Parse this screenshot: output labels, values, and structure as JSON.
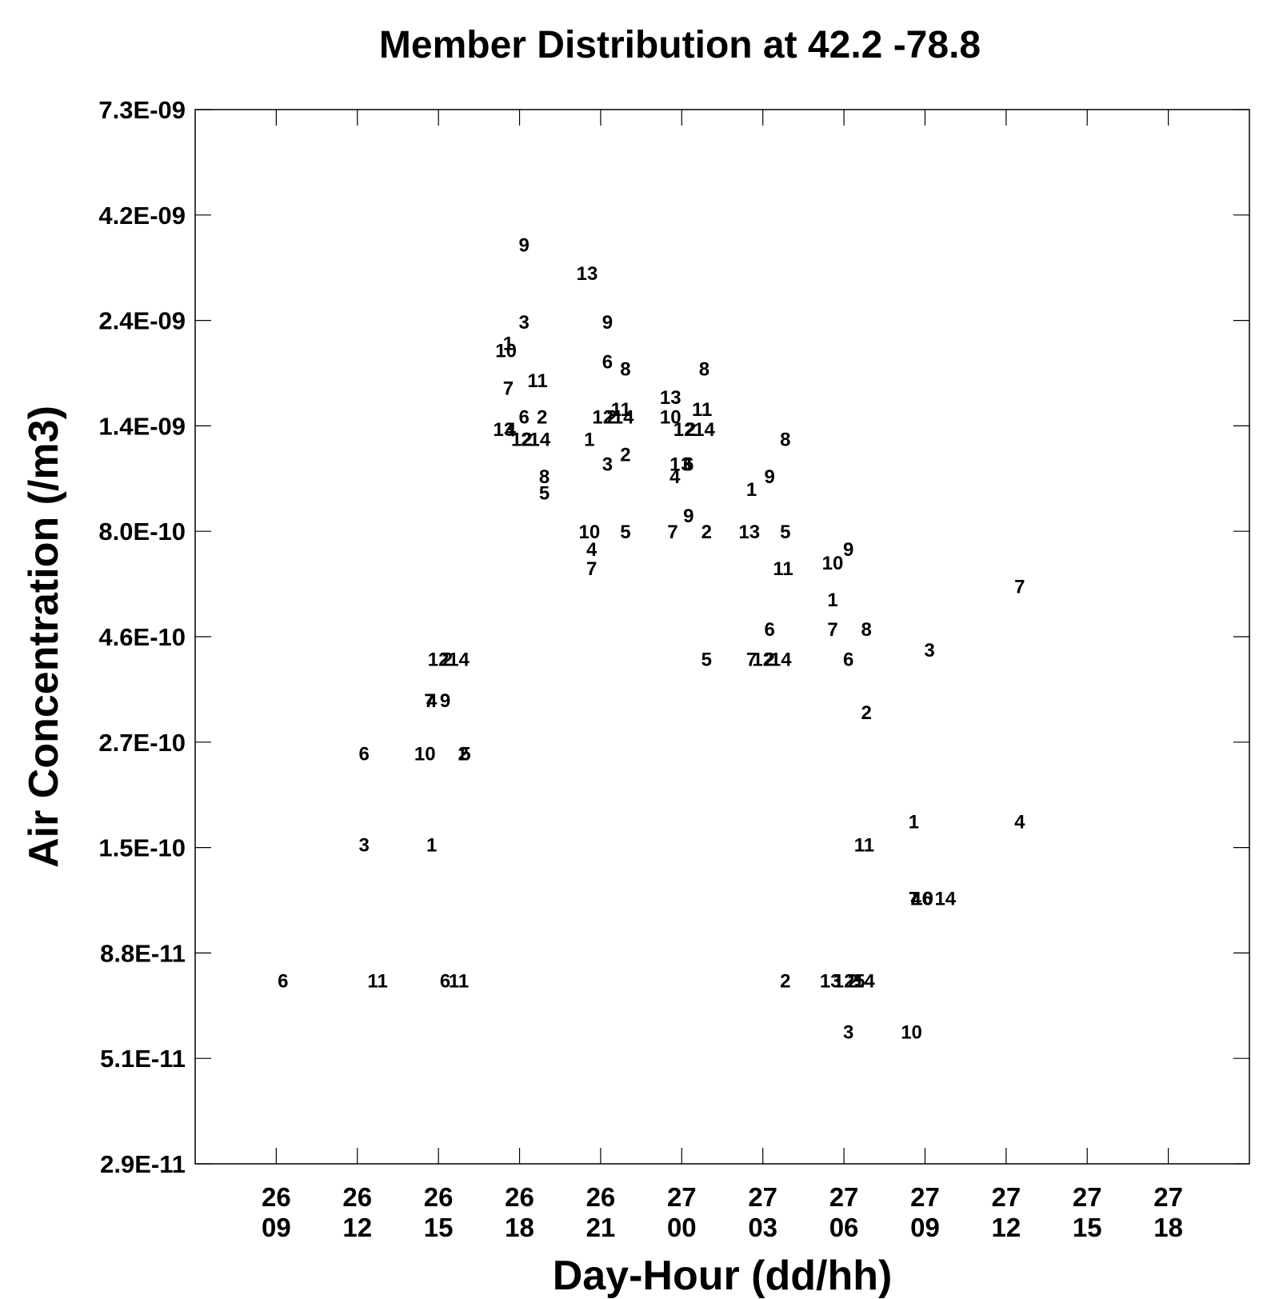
{
  "chart_data": {
    "type": "scatter",
    "title": "Member Distribution at  42.2  -78.8",
    "xlabel": "Day-Hour (dd/hh)",
    "ylabel": "Air Concentration (/m3)",
    "y_scale": "log",
    "ylim": [
      2.9e-11,
      7.3e-09
    ],
    "y_ticks": [
      "7.3E-09",
      "4.2E-09",
      "2.4E-09",
      "1.4E-09",
      "8.0E-10",
      "4.6E-10",
      "2.7E-10",
      "1.5E-10",
      "8.8E-11",
      "5.1E-11",
      "2.9E-11"
    ],
    "x_ticks": [
      {
        "day": "26",
        "hour": "09"
      },
      {
        "day": "26",
        "hour": "12"
      },
      {
        "day": "26",
        "hour": "15"
      },
      {
        "day": "26",
        "hour": "18"
      },
      {
        "day": "26",
        "hour": "21"
      },
      {
        "day": "27",
        "hour": "00"
      },
      {
        "day": "27",
        "hour": "03"
      },
      {
        "day": "27",
        "hour": "06"
      },
      {
        "day": "27",
        "hour": "09"
      },
      {
        "day": "27",
        "hour": "12"
      },
      {
        "day": "27",
        "hour": "15"
      },
      {
        "day": "27",
        "hour": "18"
      }
    ],
    "xlim": [
      "26 06",
      "27 21"
    ],
    "grid": false,
    "points": [
      {
        "label": "6",
        "x": "26 09:15",
        "y": 7.6e-11
      },
      {
        "label": "11",
        "x": "26 12:45",
        "y": 7.6e-11
      },
      {
        "label": "6",
        "x": "26 15:15",
        "y": 7.6e-11
      },
      {
        "label": "11",
        "x": "26 15:45",
        "y": 7.6e-11
      },
      {
        "label": "6",
        "x": "26 12:15",
        "y": 2.5e-10
      },
      {
        "label": "3",
        "x": "26 12:15",
        "y": 1.55e-10
      },
      {
        "label": "10",
        "x": "26 14:30",
        "y": 2.5e-10
      },
      {
        "label": "1",
        "x": "26 14:45",
        "y": 1.55e-10
      },
      {
        "label": "2",
        "x": "26 15:55",
        "y": 2.5e-10
      },
      {
        "label": "5",
        "x": "26 16:00",
        "y": 2.5e-10
      },
      {
        "label": "7",
        "x": "26 14:40",
        "y": 3.3e-10
      },
      {
        "label": "4",
        "x": "26 14:45",
        "y": 3.3e-10
      },
      {
        "label": "9",
        "x": "26 15:15",
        "y": 3.3e-10
      },
      {
        "label": "12",
        "x": "26 15:00",
        "y": 4.1e-10
      },
      {
        "label": "2",
        "x": "26 15:20",
        "y": 4.1e-10
      },
      {
        "label": "14",
        "x": "26 15:45",
        "y": 4.1e-10
      },
      {
        "label": "9",
        "x": "26 18:10",
        "y": 3.6e-09
      },
      {
        "label": "3",
        "x": "26 18:10",
        "y": 2.4e-09
      },
      {
        "label": "1",
        "x": "26 17:35",
        "y": 2.15e-09
      },
      {
        "label": "10",
        "x": "26 17:30",
        "y": 2.07e-09
      },
      {
        "label": "7",
        "x": "26 17:35",
        "y": 1.7e-09
      },
      {
        "label": "11",
        "x": "26 18:40",
        "y": 1.77e-09
      },
      {
        "label": "6",
        "x": "26 18:10",
        "y": 1.46e-09
      },
      {
        "label": "2",
        "x": "26 18:50",
        "y": 1.46e-09
      },
      {
        "label": "13",
        "x": "26 17:25",
        "y": 1.37e-09
      },
      {
        "label": "4",
        "x": "26 17:40",
        "y": 1.37e-09
      },
      {
        "label": "12",
        "x": "26 18:05",
        "y": 1.3e-09
      },
      {
        "label": "2",
        "x": "26 18:15",
        "y": 1.3e-09
      },
      {
        "label": "14",
        "x": "26 18:45",
        "y": 1.3e-09
      },
      {
        "label": "8",
        "x": "26 18:55",
        "y": 1.07e-09
      },
      {
        "label": "5",
        "x": "26 18:55",
        "y": 9.8e-10
      },
      {
        "label": "13",
        "x": "26 20:30",
        "y": 3.1e-09
      },
      {
        "label": "9",
        "x": "26 21:15",
        "y": 2.4e-09
      },
      {
        "label": "6",
        "x": "26 21:15",
        "y": 1.95e-09
      },
      {
        "label": "8",
        "x": "26 21:55",
        "y": 1.88e-09
      },
      {
        "label": "11",
        "x": "26 21:45",
        "y": 1.52e-09
      },
      {
        "label": "12",
        "x": "26 21:05",
        "y": 1.46e-09
      },
      {
        "label": "2",
        "x": "26 21:25",
        "y": 1.46e-09
      },
      {
        "label": "14",
        "x": "26 21:50",
        "y": 1.46e-09
      },
      {
        "label": "1",
        "x": "26 20:35",
        "y": 1.3e-09
      },
      {
        "label": "2",
        "x": "26 21:55",
        "y": 1.2e-09
      },
      {
        "label": "3",
        "x": "26 21:15",
        "y": 1.14e-09
      },
      {
        "label": "10",
        "x": "26 20:35",
        "y": 8e-10
      },
      {
        "label": "5",
        "x": "26 21:55",
        "y": 8e-10
      },
      {
        "label": "4",
        "x": "26 20:40",
        "y": 7.3e-10
      },
      {
        "label": "7",
        "x": "26 20:40",
        "y": 6.6e-10
      },
      {
        "label": "13",
        "x": "26 23:35",
        "y": 1.62e-09
      },
      {
        "label": "10",
        "x": "26 23:35",
        "y": 1.46e-09
      },
      {
        "label": "8",
        "x": "27 00:50",
        "y": 1.88e-09
      },
      {
        "label": "11",
        "x": "27 00:45",
        "y": 1.52e-09
      },
      {
        "label": "12",
        "x": "27 00:05",
        "y": 1.37e-09
      },
      {
        "label": "2",
        "x": "27 00:20",
        "y": 1.37e-09
      },
      {
        "label": "14",
        "x": "27 00:50",
        "y": 1.37e-09
      },
      {
        "label": "1",
        "x": "26 23:45",
        "y": 1.14e-09
      },
      {
        "label": "3",
        "x": "27 00:10",
        "y": 1.14e-09
      },
      {
        "label": "6",
        "x": "27 00:15",
        "y": 1.14e-09
      },
      {
        "label": "4",
        "x": "26 23:45",
        "y": 1.07e-09
      },
      {
        "label": "9",
        "x": "27 00:15",
        "y": 8.7e-10
      },
      {
        "label": "7",
        "x": "26 23:40",
        "y": 8e-10
      },
      {
        "label": "2",
        "x": "27 00:55",
        "y": 8e-10
      },
      {
        "label": "5",
        "x": "27 00:55",
        "y": 4.1e-10
      },
      {
        "label": "8",
        "x": "27 03:50",
        "y": 1.3e-09
      },
      {
        "label": "9",
        "x": "27 03:15",
        "y": 1.07e-09
      },
      {
        "label": "1",
        "x": "27 02:35",
        "y": 1e-09
      },
      {
        "label": "13",
        "x": "27 02:30",
        "y": 8e-10
      },
      {
        "label": "5",
        "x": "27 03:50",
        "y": 8e-10
      },
      {
        "label": "11",
        "x": "27 03:45",
        "y": 6.6e-10
      },
      {
        "label": "6",
        "x": "27 03:15",
        "y": 4.8e-10
      },
      {
        "label": "7",
        "x": "27 02:35",
        "y": 4.1e-10
      },
      {
        "label": "12",
        "x": "27 03:00",
        "y": 4.1e-10
      },
      {
        "label": "2",
        "x": "27 03:15",
        "y": 4.1e-10
      },
      {
        "label": "14",
        "x": "27 03:40",
        "y": 4.1e-10
      },
      {
        "label": "2",
        "x": "27 03:50",
        "y": 7.6e-11
      },
      {
        "label": "9",
        "x": "27 06:10",
        "y": 7.3e-10
      },
      {
        "label": "10",
        "x": "27 05:35",
        "y": 6.8e-10
      },
      {
        "label": "1",
        "x": "27 05:35",
        "y": 5.6e-10
      },
      {
        "label": "7",
        "x": "27 05:35",
        "y": 4.8e-10
      },
      {
        "label": "8",
        "x": "27 06:50",
        "y": 4.8e-10
      },
      {
        "label": "6",
        "x": "27 06:10",
        "y": 4.1e-10
      },
      {
        "label": "2",
        "x": "27 06:50",
        "y": 3.1e-10
      },
      {
        "label": "11",
        "x": "27 06:45",
        "y": 1.55e-10
      },
      {
        "label": "13",
        "x": "27 05:30",
        "y": 7.6e-11
      },
      {
        "label": "12",
        "x": "27 06:00",
        "y": 7.6e-11
      },
      {
        "label": "2",
        "x": "27 06:20",
        "y": 7.6e-11
      },
      {
        "label": "5",
        "x": "27 06:35",
        "y": 7.6e-11
      },
      {
        "label": "14",
        "x": "27 06:45",
        "y": 7.6e-11
      },
      {
        "label": "3",
        "x": "27 06:10",
        "y": 5.8e-11
      },
      {
        "label": "7",
        "x": "27 12:30",
        "y": 6e-10
      },
      {
        "label": "3",
        "x": "27 09:10",
        "y": 4.3e-10
      },
      {
        "label": "1",
        "x": "27 08:35",
        "y": 1.75e-10
      },
      {
        "label": "4",
        "x": "27 12:30",
        "y": 1.75e-10
      },
      {
        "label": "7",
        "x": "27 08:35",
        "y": 1.17e-10
      },
      {
        "label": "4",
        "x": "27 08:40",
        "y": 1.17e-10
      },
      {
        "label": "10",
        "x": "27 08:55",
        "y": 1.17e-10
      },
      {
        "label": "6",
        "x": "27 09:05",
        "y": 1.17e-10
      },
      {
        "label": "14",
        "x": "27 09:45",
        "y": 1.17e-10
      },
      {
        "label": "10",
        "x": "27 08:30",
        "y": 5.8e-11
      }
    ]
  }
}
